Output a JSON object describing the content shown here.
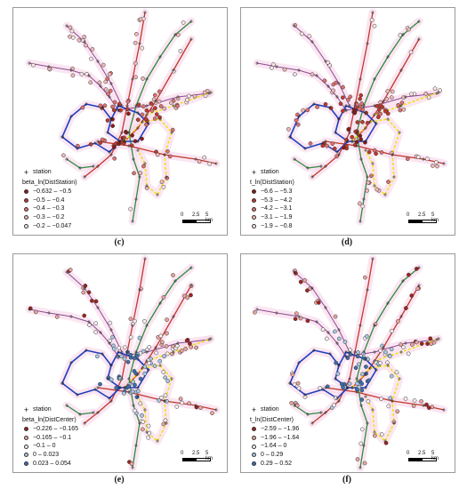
{
  "panels": [
    {
      "id": "c",
      "caption": "(c)",
      "legend_station": "station",
      "legend_title": "beta_ln(DistStation)",
      "classes": [
        {
          "label": "−0.632 – −0.5",
          "color": "#8b1a1a"
        },
        {
          "label": "−0.5 – −0.4",
          "color": "#c0392b"
        },
        {
          "label": "−0.4 – −0.3",
          "color": "#e07070"
        },
        {
          "label": "−0.3 – −0.2",
          "color": "#f2b8b8"
        },
        {
          "label": "−0.2 – −0.047",
          "color": "#fbe6e6"
        }
      ],
      "scale": {
        "labels": [
          "0",
          "2.5",
          "5 km"
        ]
      }
    },
    {
      "id": "d",
      "caption": "(d)",
      "legend_station": "station",
      "legend_title": "t_ln(DistStation)",
      "classes": [
        {
          "label": "−6.6 – −5.3",
          "color": "#8b1a1a"
        },
        {
          "label": "−5.3 – −4.2",
          "color": "#c0392b"
        },
        {
          "label": "−4.2 – −3.1",
          "color": "#e07070"
        },
        {
          "label": "−3.1 – −1.9",
          "color": "#f2b8b8"
        },
        {
          "label": "−1.9 – −0.8",
          "color": "#fbe6e6"
        }
      ],
      "scale": {
        "labels": [
          "0",
          "2.5",
          "5 km"
        ]
      }
    },
    {
      "id": "e",
      "caption": "(e)",
      "legend_station": "station",
      "legend_title": "beta_ln(DistCenter)",
      "classes": [
        {
          "label": "−0.226 – −0.165",
          "color": "#a0231f"
        },
        {
          "label": "−0.165 – −0.1",
          "color": "#eaa3a0"
        },
        {
          "label": "−0.1 – 0",
          "color": "#f8efef"
        },
        {
          "label": "0 – 0.023",
          "color": "#a9c7e3"
        },
        {
          "label": "0.023 – 0.054",
          "color": "#3c6fae"
        }
      ],
      "scale": {
        "labels": [
          "0",
          "2.5",
          "5 km"
        ]
      }
    },
    {
      "id": "f",
      "caption": "(f)",
      "legend_station": "station",
      "legend_title": "t_ln(DistCenter)",
      "classes": [
        {
          "label": "−2.59 – −1.96",
          "color": "#a0231f"
        },
        {
          "label": "−1.96 – −1.64",
          "color": "#eaa3a0"
        },
        {
          "label": "−1.64 – 0",
          "color": "#f8efef"
        },
        {
          "label": "0 – 0.29",
          "color": "#a9c7e3"
        },
        {
          "label": "0.29 – 0.52",
          "color": "#3c6fae"
        }
      ],
      "scale": {
        "labels": [
          "0",
          "2.5",
          "5 km"
        ]
      }
    }
  ],
  "line_colors": {
    "red": "#c0392b",
    "green": "#2e8b3e",
    "blue": "#1f3fbf",
    "yellow": "#f2e200",
    "purple": "#8e4a8e"
  }
}
